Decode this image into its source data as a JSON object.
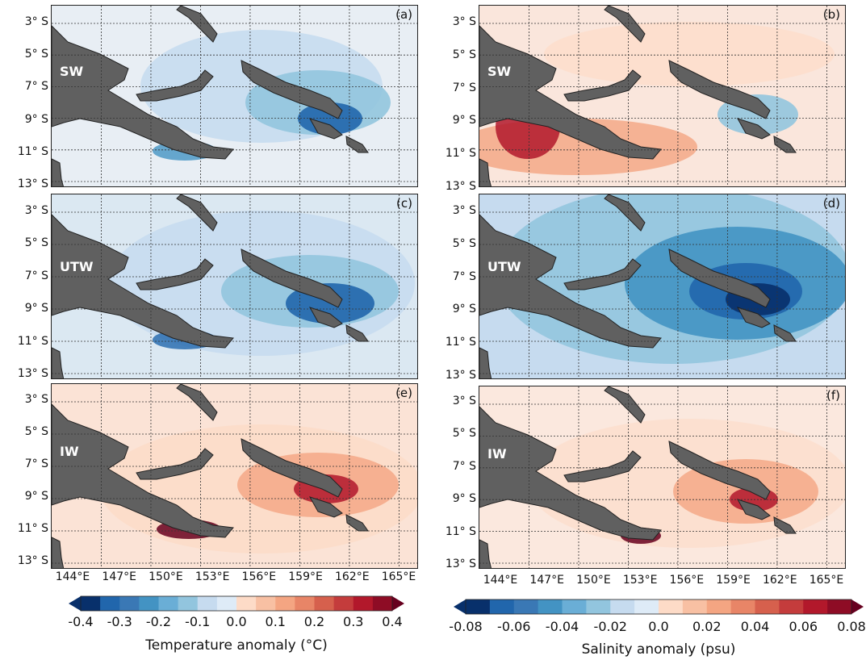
{
  "colors": {
    "land": "#606060",
    "ocean_neutral": "#eaf0f5",
    "cold": [
      "#08306b",
      "#2166ac",
      "#4393c3",
      "#92c5de",
      "#c6dbef",
      "#deebf7"
    ],
    "warm": [
      "#fddbc7",
      "#f4a582",
      "#d6604d",
      "#b2182b",
      "#67001f"
    ]
  },
  "lat_labels": [
    "3° S",
    "5° S",
    "7° S",
    "9° S",
    "11° S",
    "13° S"
  ],
  "lon_labels": [
    "144°E",
    "147°E",
    "150°E",
    "153°E",
    "156°E",
    "159°E",
    "162°E",
    "165°E"
  ],
  "panels": [
    {
      "letter": "(a)",
      "region": "SW",
      "variable": "temperature"
    },
    {
      "letter": "(b)",
      "region": "SW",
      "variable": "salinity"
    },
    {
      "letter": "(c)",
      "region": "UTW",
      "variable": "temperature"
    },
    {
      "letter": "(d)",
      "region": "UTW",
      "variable": "salinity"
    },
    {
      "letter": "(e)",
      "region": "IW",
      "variable": "temperature"
    },
    {
      "letter": "(f)",
      "region": "IW",
      "variable": "salinity"
    }
  ],
  "colorbars": {
    "temperature": {
      "ticks": [
        "-0.4",
        "-0.3",
        "-0.2",
        "-0.1",
        "0.0",
        "0.1",
        "0.2",
        "0.3",
        "0.4"
      ],
      "label": "Temperature anomaly (°C)",
      "range": [
        -0.4,
        0.4
      ]
    },
    "salinity": {
      "ticks": [
        "-0.08",
        "-0.06",
        "-0.04",
        "-0.02",
        "0.0",
        "0.02",
        "0.04",
        "0.06",
        "0.08"
      ],
      "label": "Salinity anomaly (psu)",
      "range": [
        -0.08,
        0.08
      ]
    }
  }
}
